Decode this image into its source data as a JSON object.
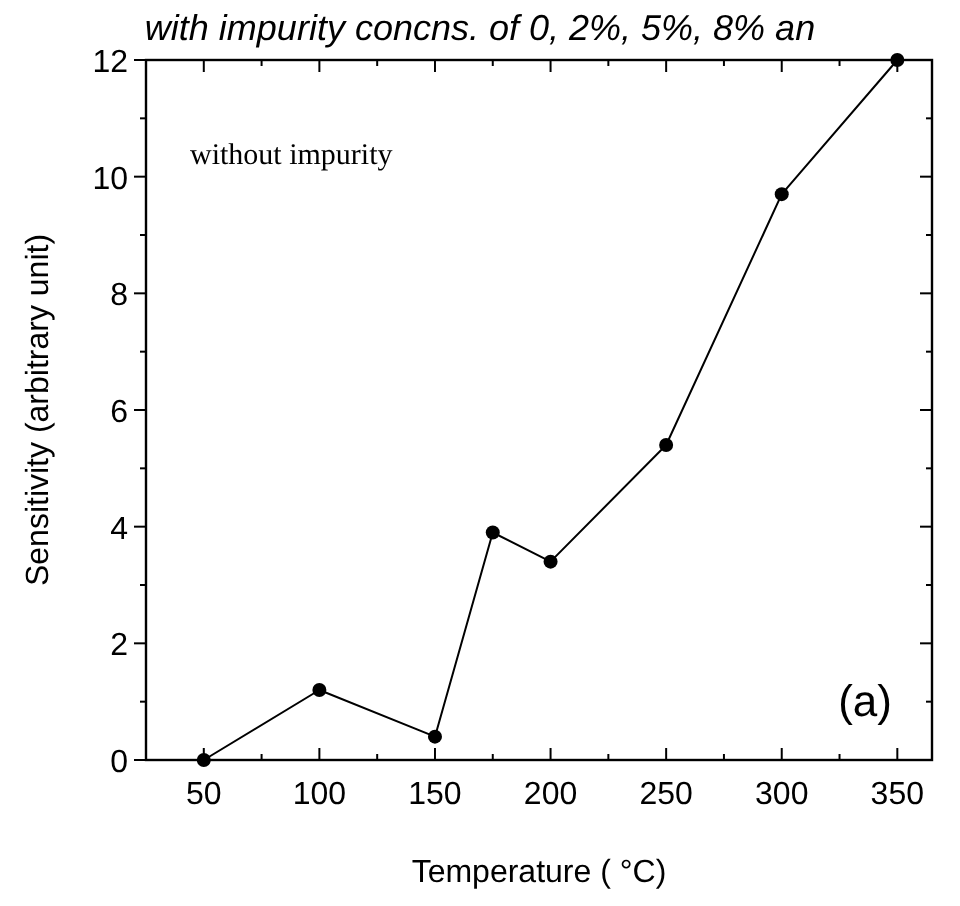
{
  "chart_data": {
    "type": "line",
    "title": "with impurity concns. of 0, 2%, 5%, 8% an",
    "xlabel": "Temperature ( °C)",
    "ylabel": "Sensitivity (arbitrary unit)",
    "x": [
      50,
      100,
      150,
      175,
      200,
      250,
      300,
      350
    ],
    "series": [
      {
        "color": "#000000",
        "values": [
          0,
          1.2,
          0.4,
          3.9,
          3.4,
          5.4,
          9.7,
          12
        ]
      }
    ],
    "xlim": [
      25,
      365
    ],
    "ylim": [
      0,
      12
    ],
    "xticks": [
      50,
      {
        "value": 75,
        "label": null
      },
      100,
      {
        "value": 125,
        "label": null
      },
      150,
      {
        "value": 175,
        "label": null
      },
      200,
      {
        "value": 225,
        "label": null
      },
      250,
      {
        "value": 275,
        "label": null
      },
      300,
      {
        "value": 325,
        "label": null
      },
      350
    ],
    "yticks": [
      0,
      {
        "value": 1,
        "label": null
      },
      2,
      {
        "value": 3,
        "label": null
      },
      4,
      {
        "value": 5,
        "label": null
      },
      6,
      {
        "value": 7,
        "label": null
      },
      8,
      {
        "value": 9,
        "label": null
      },
      10,
      {
        "value": 11,
        "label": null
      },
      12
    ],
    "marker": "circle",
    "line_style": "solid",
    "grid": false,
    "annotations": [
      "without impurity",
      "(a)"
    ]
  }
}
